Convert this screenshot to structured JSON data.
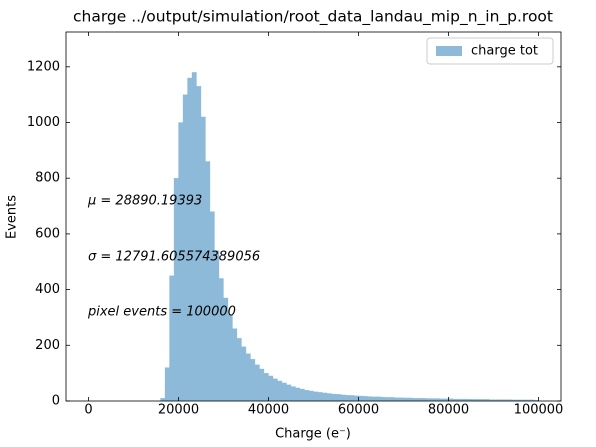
{
  "chart_data": {
    "type": "histogram",
    "title": "charge ../output/simulation/root_data_landau_mip_n_in_p.root",
    "xlabel": "Charge (e⁻)",
    "ylabel": "Events",
    "legend": "upper right",
    "series": [
      {
        "name": "charge tot",
        "color": "#8ebad9",
        "bins": [
          0,
          1000,
          2000,
          3000,
          4000,
          5000,
          6000,
          7000,
          8000,
          9000,
          10000,
          11000,
          12000,
          13000,
          14000,
          15000,
          16000,
          17000,
          18000,
          19000,
          20000,
          21000,
          22000,
          23000,
          24000,
          25000,
          26000,
          27000,
          28000,
          29000,
          30000,
          31000,
          32000,
          33000,
          34000,
          35000,
          36000,
          37000,
          38000,
          39000,
          40000,
          41000,
          42000,
          43000,
          44000,
          45000,
          46000,
          47000,
          48000,
          49000,
          50000,
          51000,
          52000,
          53000,
          54000,
          55000,
          56000,
          57000,
          58000,
          59000,
          60000,
          61000,
          62000,
          63000,
          64000,
          65000,
          66000,
          67000,
          68000,
          69000,
          70000,
          71000,
          72000,
          73000,
          74000,
          75000,
          76000,
          77000,
          78000,
          79000,
          80000,
          81000,
          82000,
          83000,
          84000,
          85000,
          86000,
          87000,
          88000,
          89000,
          90000,
          91000,
          92000,
          93000,
          94000,
          95000,
          96000,
          97000,
          98000,
          99000,
          100000
        ],
        "values": [
          0,
          0,
          0,
          0,
          0,
          0,
          0,
          0,
          0,
          0,
          0,
          0,
          0,
          0,
          0,
          0,
          10,
          120,
          450,
          800,
          1000,
          1100,
          1160,
          1180,
          1130,
          1020,
          860,
          680,
          540,
          440,
          370,
          310,
          260,
          225,
          195,
          170,
          150,
          130,
          115,
          100,
          90,
          80,
          72,
          65,
          58,
          52,
          47,
          43,
          39,
          36,
          33,
          31,
          29,
          27,
          25,
          24,
          22,
          21,
          20,
          19,
          18,
          17,
          16,
          15,
          15,
          14,
          13,
          13,
          12,
          12,
          11,
          11,
          10,
          10,
          10,
          9,
          9,
          9,
          8,
          8,
          8,
          7,
          7,
          7,
          7,
          6,
          6,
          6,
          6,
          5,
          5,
          5,
          5,
          5,
          4,
          4,
          4,
          4,
          4,
          3
        ]
      }
    ],
    "annotations": [
      "μ = 28890.19393",
      "σ = 12791.605574389056",
      "pixel events = 100000"
    ],
    "xlim": [
      -5000,
      105000
    ],
    "ylim": [
      0,
      1325
    ],
    "xticks": [
      0,
      20000,
      40000,
      60000,
      80000,
      100000
    ],
    "yticks": [
      0,
      200,
      400,
      600,
      800,
      1000,
      1200
    ]
  }
}
